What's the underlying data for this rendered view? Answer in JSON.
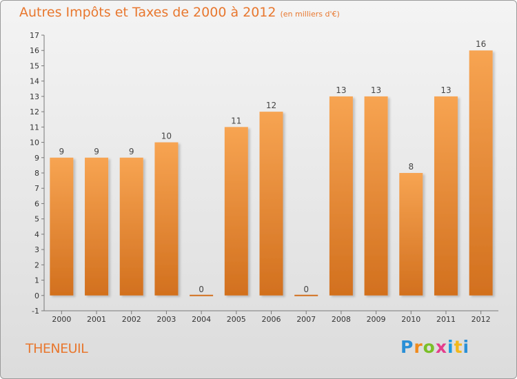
{
  "chart_data": {
    "type": "bar",
    "title": "Autres Impôts et Taxes de 2000 à 2012",
    "subtitle": "(en milliers d'€)",
    "categories": [
      "2000",
      "2001",
      "2002",
      "2003",
      "2004",
      "2005",
      "2006",
      "2007",
      "2008",
      "2009",
      "2010",
      "2011",
      "2012"
    ],
    "values": [
      9,
      9,
      9,
      10,
      0,
      11,
      12,
      0,
      13,
      13,
      8,
      13,
      16
    ],
    "ylim": [
      -1,
      17
    ],
    "yticks": [
      -1,
      0,
      1,
      2,
      3,
      4,
      5,
      6,
      7,
      8,
      9,
      10,
      11,
      12,
      13,
      14,
      15,
      16,
      17
    ],
    "grid": false,
    "bar_color": "#ee8f3a",
    "text_color": "#e8772e"
  },
  "location": "THENEUIL",
  "logo": {
    "text": "Proxiti",
    "letters": [
      "P",
      "r",
      "o",
      "x",
      "i",
      "t",
      "i"
    ]
  }
}
